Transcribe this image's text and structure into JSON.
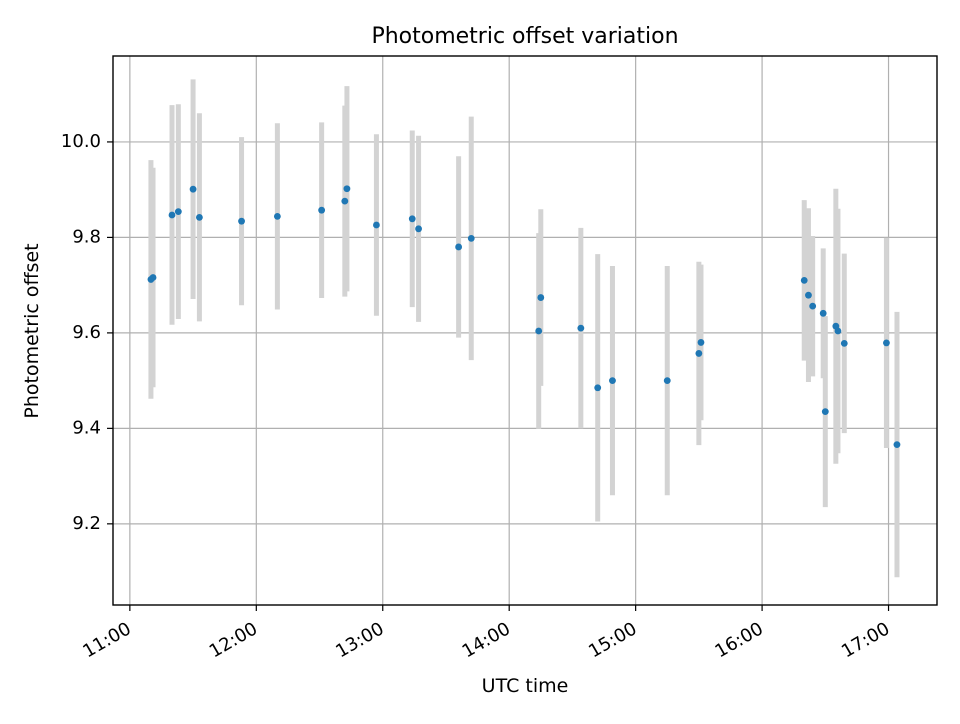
{
  "chart_data": {
    "type": "scatter",
    "title": "Photometric offset variation",
    "xlabel": "UTC time",
    "ylabel": "Photometric offset",
    "xlim": [
      "10:52",
      "17:23"
    ],
    "ylim": [
      9.03,
      10.18
    ],
    "x_ticks": [
      "11:00",
      "12:00",
      "13:00",
      "14:00",
      "15:00",
      "16:00",
      "17:00"
    ],
    "y_ticks": [
      "9.2",
      "9.4",
      "9.6",
      "9.8",
      "10.0"
    ],
    "grid": true,
    "legend": "none",
    "colors": {
      "points": "#1f77b4",
      "error_bars": "#d3d3d3"
    },
    "points": [
      {
        "t": "11:10",
        "y": 9.712,
        "err": 0.25
      },
      {
        "t": "11:11",
        "y": 9.716,
        "err": 0.23
      },
      {
        "t": "11:20",
        "y": 9.847,
        "err": 0.23
      },
      {
        "t": "11:23",
        "y": 9.854,
        "err": 0.225
      },
      {
        "t": "11:30",
        "y": 9.901,
        "err": 0.23
      },
      {
        "t": "11:33",
        "y": 9.842,
        "err": 0.218
      },
      {
        "t": "11:53",
        "y": 9.834,
        "err": 0.176
      },
      {
        "t": "12:10",
        "y": 9.844,
        "err": 0.195
      },
      {
        "t": "12:31",
        "y": 9.857,
        "err": 0.184
      },
      {
        "t": "12:42",
        "y": 9.876,
        "err": 0.2
      },
      {
        "t": "12:43",
        "y": 9.902,
        "err": 0.215
      },
      {
        "t": "12:57",
        "y": 9.826,
        "err": 0.19
      },
      {
        "t": "13:14",
        "y": 9.839,
        "err": 0.185
      },
      {
        "t": "13:17",
        "y": 9.818,
        "err": 0.195
      },
      {
        "t": "13:36",
        "y": 9.78,
        "err": 0.19
      },
      {
        "t": "13:42",
        "y": 9.798,
        "err": 0.255
      },
      {
        "t": "14:14",
        "y": 9.604,
        "err": 0.205
      },
      {
        "t": "14:15",
        "y": 9.674,
        "err": 0.185
      },
      {
        "t": "14:34",
        "y": 9.61,
        "err": 0.21
      },
      {
        "t": "14:42",
        "y": 9.485,
        "err": 0.28
      },
      {
        "t": "14:49",
        "y": 9.5,
        "err": 0.24
      },
      {
        "t": "15:15",
        "y": 9.5,
        "err": 0.24
      },
      {
        "t": "15:30",
        "y": 9.557,
        "err": 0.192
      },
      {
        "t": "15:31",
        "y": 9.58,
        "err": 0.163
      },
      {
        "t": "16:20",
        "y": 9.71,
        "err": 0.168
      },
      {
        "t": "16:22",
        "y": 9.679,
        "err": 0.182
      },
      {
        "t": "16:24",
        "y": 9.656,
        "err": 0.147
      },
      {
        "t": "16:29",
        "y": 9.641,
        "err": 0.136
      },
      {
        "t": "16:30",
        "y": 9.435,
        "err": 0.2
      },
      {
        "t": "16:35",
        "y": 9.614,
        "err": 0.288
      },
      {
        "t": "16:36",
        "y": 9.604,
        "err": 0.256
      },
      {
        "t": "16:39",
        "y": 9.578,
        "err": 0.188
      },
      {
        "t": "16:59",
        "y": 9.579,
        "err": 0.22
      },
      {
        "t": "17:04",
        "y": 9.366,
        "err": 0.278
      }
    ]
  }
}
